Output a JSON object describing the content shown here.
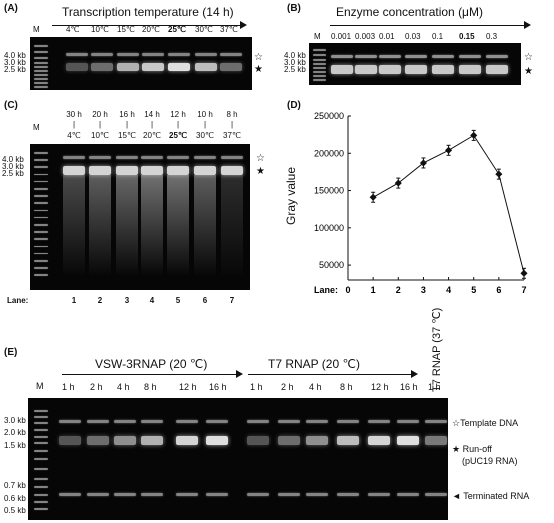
{
  "panelA": {
    "label": "(A)",
    "title": "Transcription temperature (14 h)",
    "lane_m": "M",
    "lanes": [
      "4℃",
      "10℃",
      "15℃",
      "20℃",
      "25℃",
      "30℃",
      "37℃"
    ],
    "size_labels": [
      "4.0 kb",
      "3.0 kb",
      "2.5 kb"
    ],
    "star_open": "☆",
    "star_filled": "★"
  },
  "panelB": {
    "label": "(B)",
    "title": "Enzyme concentration (μM)",
    "lane_m": "M",
    "lanes": [
      "0.001",
      "0.003",
      "0.01",
      "0.03",
      "0.1",
      "0.15",
      "0.3"
    ],
    "star_open": "☆",
    "star_filled": "★"
  },
  "panelC": {
    "label": "(C)",
    "lane_m": "M",
    "times": [
      "30 h",
      "20 h",
      "16 h",
      "14 h",
      "12 h",
      "10 h",
      "8 h"
    ],
    "temps": [
      "4℃",
      "10℃",
      "15℃",
      "20℃",
      "25℃",
      "30℃",
      "37℃"
    ],
    "size_labels": [
      "4.0 kb",
      "3.0 kb",
      "2.5 kb"
    ],
    "lane_title": "Lane:",
    "lane_numbers": [
      "1",
      "2",
      "3",
      "4",
      "5",
      "6",
      "7"
    ],
    "star_open": "☆",
    "star_filled": "★"
  },
  "panelD": {
    "label": "(D)",
    "ylabel": "Gray value",
    "xlabel": "Lane:",
    "yticks": [
      "50000",
      "100000",
      "150000",
      "200000",
      "250000"
    ],
    "xticks": [
      "0",
      "1",
      "2",
      "3",
      "4",
      "5",
      "6",
      "7"
    ]
  },
  "chart_data": {
    "type": "line",
    "x": [
      1,
      2,
      3,
      4,
      5,
      6,
      7
    ],
    "y": [
      141000,
      160000,
      187000,
      204000,
      224000,
      172000,
      39000
    ],
    "xlabel": "Lane:",
    "ylabel": "Gray value",
    "xlim": [
      0,
      7
    ],
    "ylim": [
      30000,
      250000
    ]
  },
  "panelE": {
    "label": "(E)",
    "group1": "VSW-3RNAP (20 ℃)",
    "group2": "T7 RNAP (20 ℃)",
    "group3": "T7 RNAP (37 ℃)",
    "lane_m": "M",
    "times1": [
      "1 h",
      "2 h",
      "4 h",
      "8 h",
      "12 h",
      "16 h"
    ],
    "times2": [
      "1 h",
      "2 h",
      "4 h",
      "8 h",
      "12 h",
      "16 h"
    ],
    "time3": "1 h",
    "size_labels": [
      "3.0 kb",
      "2.0 kb",
      "1.5 kb",
      "0.7 kb",
      "0.6 kb",
      "0.5 kb"
    ],
    "template_label": "☆Template DNA",
    "runoff_label": "★ Run-off",
    "runoff_sub": "(pUC19 RNA)",
    "terminated_label": "◄ Terminated RNA"
  }
}
